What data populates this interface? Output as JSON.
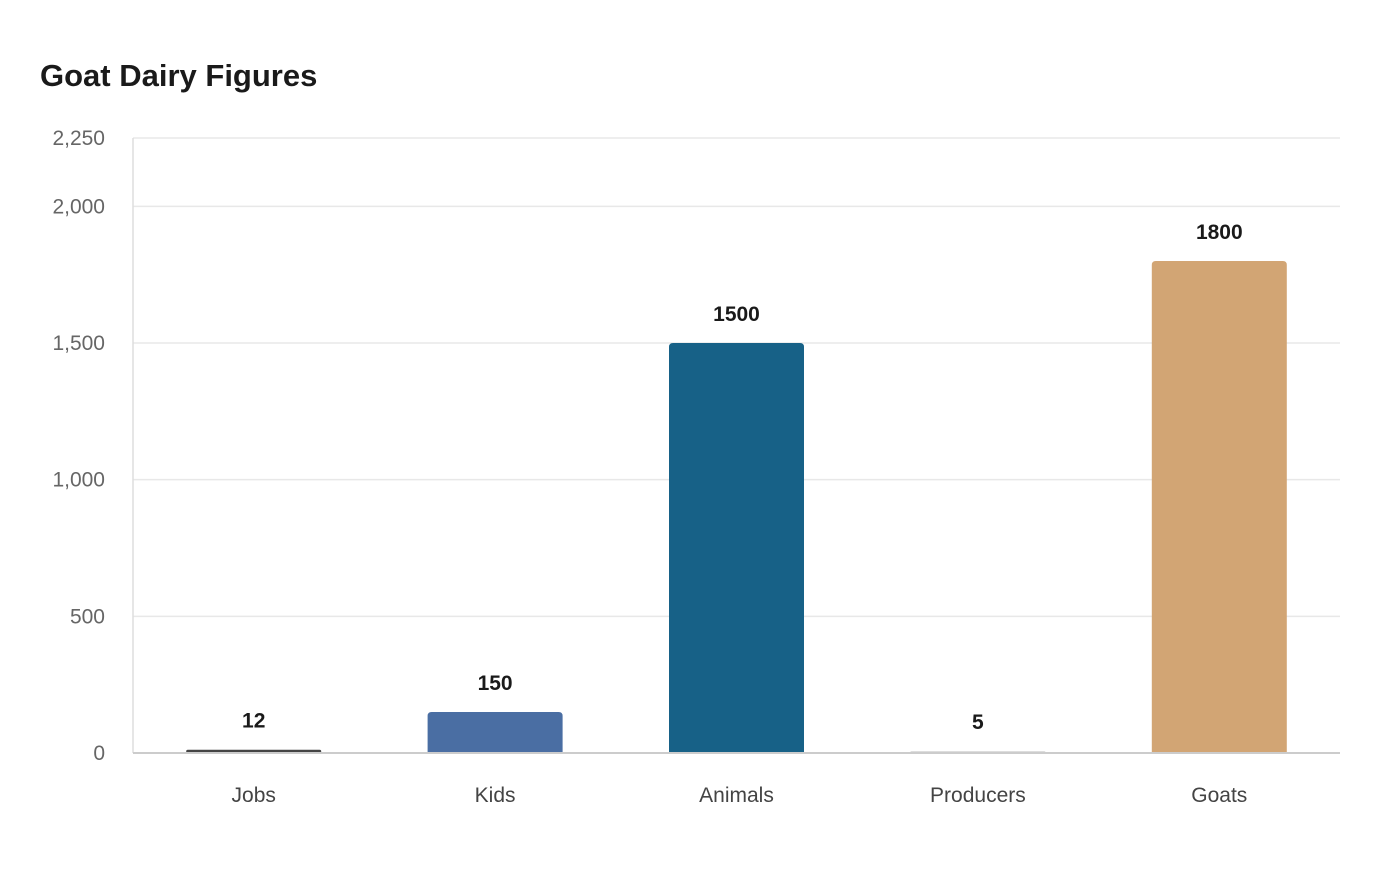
{
  "chart_data": {
    "type": "bar",
    "title": "Goat Dairy Figures",
    "categories": [
      "Jobs",
      "Kids",
      "Animals",
      "Producers",
      "Goats"
    ],
    "values": [
      12,
      150,
      1500,
      5,
      1800
    ],
    "colors": [
      "#444444",
      "#4a6ea3",
      "#176187",
      "#dddddd",
      "#d2a574"
    ],
    "ylim": [
      0,
      2250
    ],
    "yticks": [
      0,
      500,
      1000,
      1500,
      2000,
      2250
    ],
    "ytick_labels": [
      "0",
      "500",
      "1,000",
      "1,500",
      "2,000",
      "2,250"
    ],
    "data_labels": [
      "12",
      "150",
      "1500",
      "5",
      "1800"
    ],
    "xlabel": "",
    "ylabel": "",
    "grid": true,
    "legend": "none"
  }
}
